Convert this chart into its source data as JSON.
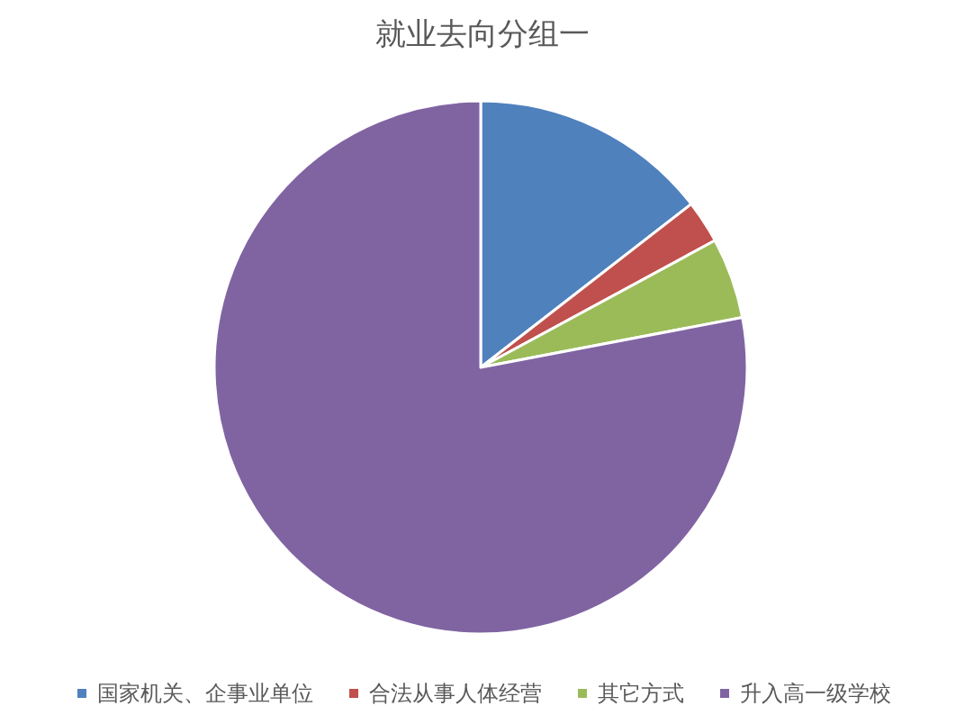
{
  "chart_data": {
    "type": "pie",
    "title": "就业去向分组一",
    "categories": [
      "国家机关、企事业单位",
      "合法从事人体经营",
      "其它方式",
      "升入高一级学校"
    ],
    "values": [
      14.5,
      2.6,
      4.9,
      78.0
    ],
    "colors": [
      "#4f81bd",
      "#c0504d",
      "#9bbb59",
      "#8064a2"
    ],
    "legend": "bottom"
  }
}
